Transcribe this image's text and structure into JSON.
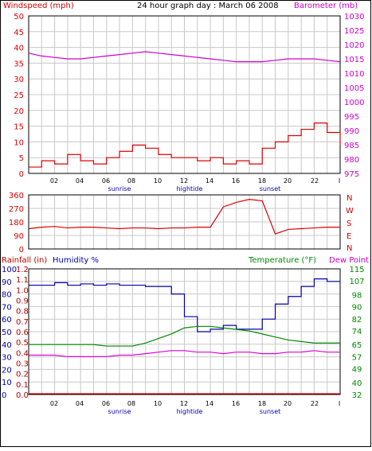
{
  "colors": {
    "red": "#dd0000",
    "magenta": "#cc00cc",
    "darkred": "#bb0000",
    "blue": "#0000aa",
    "green": "#008800",
    "pink": "#dd00dd",
    "grid": "#c8c8c8",
    "frame": "#000000"
  },
  "top": {
    "title": "24 hour graph day : March 06 2008",
    "left_label": "Windspeed (mph)",
    "right_label": "Barometer (mb)"
  },
  "middle": {
    "dir_labels": [
      "N",
      "W",
      "S",
      "E",
      "N"
    ]
  },
  "bottom": {
    "rainfall_label": "Rainfall (in)",
    "humidity_label": "Humidity %",
    "temperature_label": "Temperature (°F)",
    "dewpoint_label": "Dew Point"
  },
  "x_axis": {
    "ticks": [
      "02",
      "04",
      "06",
      "08",
      "10",
      "12",
      "14",
      "16",
      "18",
      "20",
      "22",
      "I"
    ],
    "sunrise": "sunrise",
    "hightide": "hightide",
    "sunset": "sunset"
  },
  "chart_data": [
    {
      "type": "line",
      "title": "24 hour graph day : March 06 2008",
      "x": [
        0,
        1,
        2,
        3,
        4,
        5,
        6,
        7,
        8,
        9,
        10,
        11,
        12,
        13,
        14,
        15,
        16,
        17,
        18,
        19,
        20,
        21,
        22,
        23,
        24
      ],
      "ylim_left": [
        0,
        50
      ],
      "ylim_right": [
        975,
        1030
      ],
      "yticks_left": [
        0,
        5,
        10,
        15,
        20,
        25,
        30,
        35,
        40,
        45,
        50
      ],
      "yticks_right": [
        975,
        980,
        985,
        990,
        995,
        1000,
        1005,
        1010,
        1015,
        1020,
        1025,
        1030
      ],
      "series": [
        {
          "name": "Windspeed (mph)",
          "axis": "left",
          "values": [
            2,
            4,
            3,
            6,
            4,
            3,
            5,
            7,
            9,
            8,
            6,
            5,
            5,
            4,
            5,
            3,
            4,
            3,
            8,
            10,
            12,
            14,
            16,
            13,
            9
          ]
        },
        {
          "name": "Barometer (mb)",
          "axis": "right",
          "values": [
            1017,
            1016,
            1015.5,
            1015,
            1015,
            1015.5,
            1016,
            1016.5,
            1017,
            1017.5,
            1017,
            1016.5,
            1016,
            1015.5,
            1015,
            1014.5,
            1014,
            1014,
            1014,
            1014.5,
            1015,
            1015,
            1015,
            1014.5,
            1014
          ]
        }
      ]
    },
    {
      "type": "line",
      "x": [
        0,
        1,
        2,
        3,
        4,
        5,
        6,
        7,
        8,
        9,
        10,
        11,
        12,
        13,
        14,
        15,
        16,
        17,
        18,
        19,
        20,
        21,
        22,
        23,
        24
      ],
      "ylim": [
        0,
        360
      ],
      "yticks": [
        0,
        90,
        180,
        270,
        360
      ],
      "series": [
        {
          "name": "Wind direction",
          "values": [
            135,
            145,
            150,
            140,
            145,
            145,
            140,
            135,
            140,
            140,
            135,
            140,
            140,
            145,
            145,
            280,
            310,
            330,
            320,
            100,
            130,
            135,
            140,
            145,
            145
          ]
        }
      ]
    },
    {
      "type": "line",
      "x": [
        0,
        1,
        2,
        3,
        4,
        5,
        6,
        7,
        8,
        9,
        10,
        11,
        12,
        13,
        14,
        15,
        16,
        17,
        18,
        19,
        20,
        21,
        22,
        23,
        24
      ],
      "ylim_left": [
        0,
        100
      ],
      "ylim_right": [
        32,
        115
      ],
      "yticks_left": [
        0,
        10,
        20,
        30,
        40,
        50,
        60,
        70,
        80,
        90,
        100
      ],
      "yticks_right": [
        32,
        40,
        49,
        57,
        65,
        74,
        82,
        90,
        98,
        107,
        115
      ],
      "yticks_rain": [
        0.0,
        0.1,
        0.2,
        0.3,
        0.4,
        0.5,
        0.6,
        0.7,
        0.8,
        0.9,
        1.0,
        1.1,
        1.2
      ],
      "series": [
        {
          "name": "Humidity %",
          "axis": "left",
          "values": [
            87,
            87,
            89,
            87,
            88,
            87,
            88,
            87,
            87,
            86,
            86,
            80,
            62,
            50,
            52,
            55,
            52,
            52,
            60,
            72,
            78,
            86,
            92,
            90,
            90
          ]
        },
        {
          "name": "Temperature (°F)",
          "axis": "right",
          "values": [
            65,
            65,
            65,
            65,
            65,
            65,
            64,
            64,
            64,
            66,
            69,
            72,
            76,
            77,
            77,
            76,
            75,
            74,
            72,
            70,
            68,
            67,
            66,
            66,
            66
          ]
        },
        {
          "name": "Dew Point",
          "axis": "right",
          "values": [
            58,
            58,
            58,
            57,
            57,
            57,
            57,
            58,
            58,
            59,
            60,
            61,
            61,
            60,
            60,
            59,
            60,
            60,
            59,
            59,
            60,
            60,
            61,
            60,
            60
          ]
        },
        {
          "name": "Rainfall (in)",
          "axis": "rain",
          "values": [
            0,
            0,
            0,
            0,
            0,
            0,
            0,
            0,
            0,
            0,
            0,
            0,
            0,
            0,
            0,
            0,
            0,
            0,
            0,
            0,
            0,
            0,
            0,
            0,
            0
          ]
        }
      ]
    }
  ]
}
